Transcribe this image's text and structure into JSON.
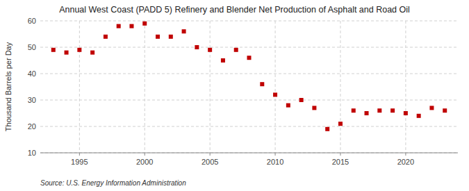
{
  "chart_data": {
    "type": "scatter",
    "title": "Annual West Coast (PADD 5) Refinery and Blender Net Production of Asphalt and Road Oil",
    "ylabel": "Thousand Barrels per Day",
    "source": "Source: U.S. Energy Information Administration",
    "x": [
      1993,
      1994,
      1995,
      1996,
      1997,
      1998,
      1999,
      2000,
      2001,
      2002,
      2003,
      2004,
      2005,
      2006,
      2007,
      2008,
      2009,
      2010,
      2011,
      2012,
      2013,
      2014,
      2015,
      2016,
      2017,
      2018,
      2019,
      2020,
      2021,
      2022,
      2023
    ],
    "values": [
      49,
      48,
      49,
      48,
      54,
      58,
      58,
      59,
      54,
      54,
      56,
      50,
      49,
      45,
      49,
      46,
      36,
      32,
      28,
      30,
      27,
      19,
      21,
      26,
      25,
      26,
      26,
      25,
      24,
      27,
      26
    ],
    "color": "#c00000",
    "marker": "square",
    "xlim": [
      1992,
      2024
    ],
    "xticks": [
      1995,
      2000,
      2005,
      2010,
      2015,
      2020
    ],
    "ylim": [
      10,
      60
    ],
    "yticks": [
      10,
      20,
      30,
      40,
      50,
      60
    ],
    "grid": true
  }
}
